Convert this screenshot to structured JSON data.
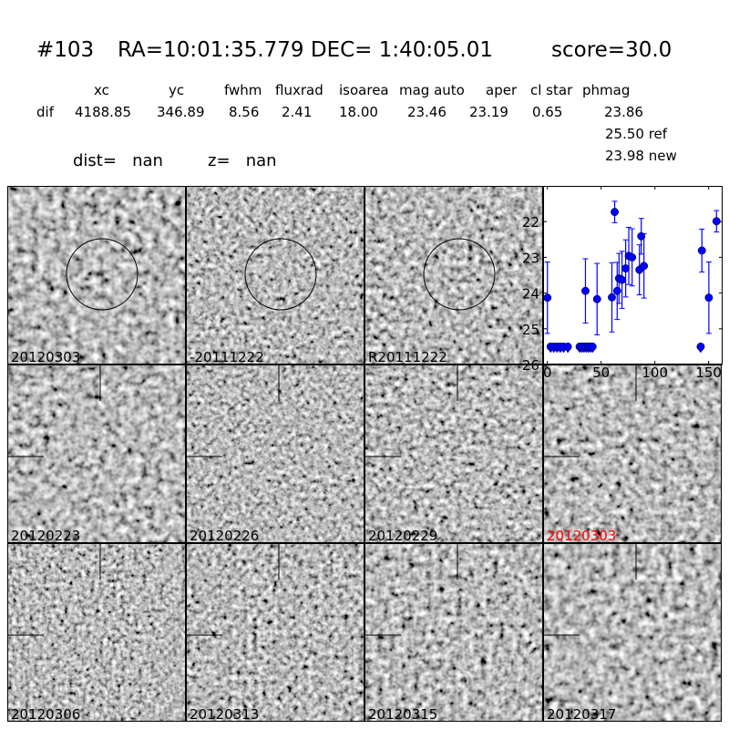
{
  "header": {
    "id": "#103",
    "coords": "RA=10:01:35.779 DEC= 1:40:05.01",
    "score": "score=30.0",
    "columns": [
      "xc",
      "yc",
      "fwhm",
      "fluxrad",
      "isoarea",
      "mag auto",
      "aper",
      "cl star",
      "phmag"
    ],
    "row_label": "dif",
    "values": [
      "4188.85",
      "346.89",
      "8.56",
      "2.41",
      "18.00",
      "23.46",
      "23.19",
      "0.65",
      "23.86"
    ],
    "ref": "25.50 ref",
    "new": "23.98 new",
    "dist": "dist=   nan",
    "z": "z=   nan"
  },
  "panels": [
    {
      "label": "20120303",
      "circle": true
    },
    {
      "label": "-20111222",
      "circle": true
    },
    {
      "label": "R20111222",
      "circle": true
    },
    {
      "label": "20120223",
      "crosshair": true
    },
    {
      "label": "20120226",
      "crosshair": true
    },
    {
      "label": "20120229",
      "crosshair": true
    },
    {
      "label": "20120303",
      "crosshair": true,
      "highlight": "#ff0000"
    },
    {
      "label": "20120306",
      "crosshair": true
    },
    {
      "label": "20120313",
      "crosshair": true
    },
    {
      "label": "20120315",
      "crosshair": true
    },
    {
      "label": "20120317",
      "crosshair": true
    }
  ],
  "chart_data": {
    "type": "scatter",
    "marker_color": "#0000ff",
    "xlim": [
      -4,
      163
    ],
    "ylim": [
      26,
      21
    ],
    "y_inverted": true,
    "xticks": [
      0,
      50,
      100,
      150
    ],
    "yticks": [
      22,
      23,
      24,
      25,
      26
    ],
    "detections": [
      {
        "x": 0,
        "y": 24.13,
        "err": 1.0
      },
      {
        "x": 35.4,
        "y": 23.94,
        "err": 0.9
      },
      {
        "x": 46.2,
        "y": 24.17,
        "err": 1.0
      },
      {
        "x": 60,
        "y": 24.12,
        "err": 0.97
      },
      {
        "x": 62.6,
        "y": 21.73,
        "err": 0.3
      },
      {
        "x": 64.9,
        "y": 23.94,
        "err": 0.8
      },
      {
        "x": 66.6,
        "y": 23.59,
        "err": 0.7
      },
      {
        "x": 69.4,
        "y": 23.63,
        "err": 0.8
      },
      {
        "x": 72.8,
        "y": 23.31,
        "err": 0.8
      },
      {
        "x": 75.7,
        "y": 22.96,
        "err": 0.8
      },
      {
        "x": 78.8,
        "y": 23.0,
        "err": 0.8
      },
      {
        "x": 85.6,
        "y": 23.35,
        "err": 0.7
      },
      {
        "x": 87.3,
        "y": 22.41,
        "err": 0.5
      },
      {
        "x": 89.8,
        "y": 23.24,
        "err": 0.9
      },
      {
        "x": 143.7,
        "y": 22.81,
        "err": 0.6
      },
      {
        "x": 150.2,
        "y": 24.13,
        "err": 1.0
      },
      {
        "x": 157.3,
        "y": 21.99,
        "err": 0.3
      }
    ],
    "upper_limits": [
      {
        "x": 3,
        "y": 25.5
      },
      {
        "x": 6,
        "y": 25.5
      },
      {
        "x": 9,
        "y": 25.5
      },
      {
        "x": 12,
        "y": 25.5
      },
      {
        "x": 15,
        "y": 25.5
      },
      {
        "x": 19,
        "y": 25.5
      },
      {
        "x": 30,
        "y": 25.5
      },
      {
        "x": 32,
        "y": 25.5
      },
      {
        "x": 34,
        "y": 25.5
      },
      {
        "x": 36,
        "y": 25.5
      },
      {
        "x": 38,
        "y": 25.5
      },
      {
        "x": 40,
        "y": 25.5
      },
      {
        "x": 42,
        "y": 25.5
      },
      {
        "x": 142.6,
        "y": 25.5
      }
    ]
  }
}
